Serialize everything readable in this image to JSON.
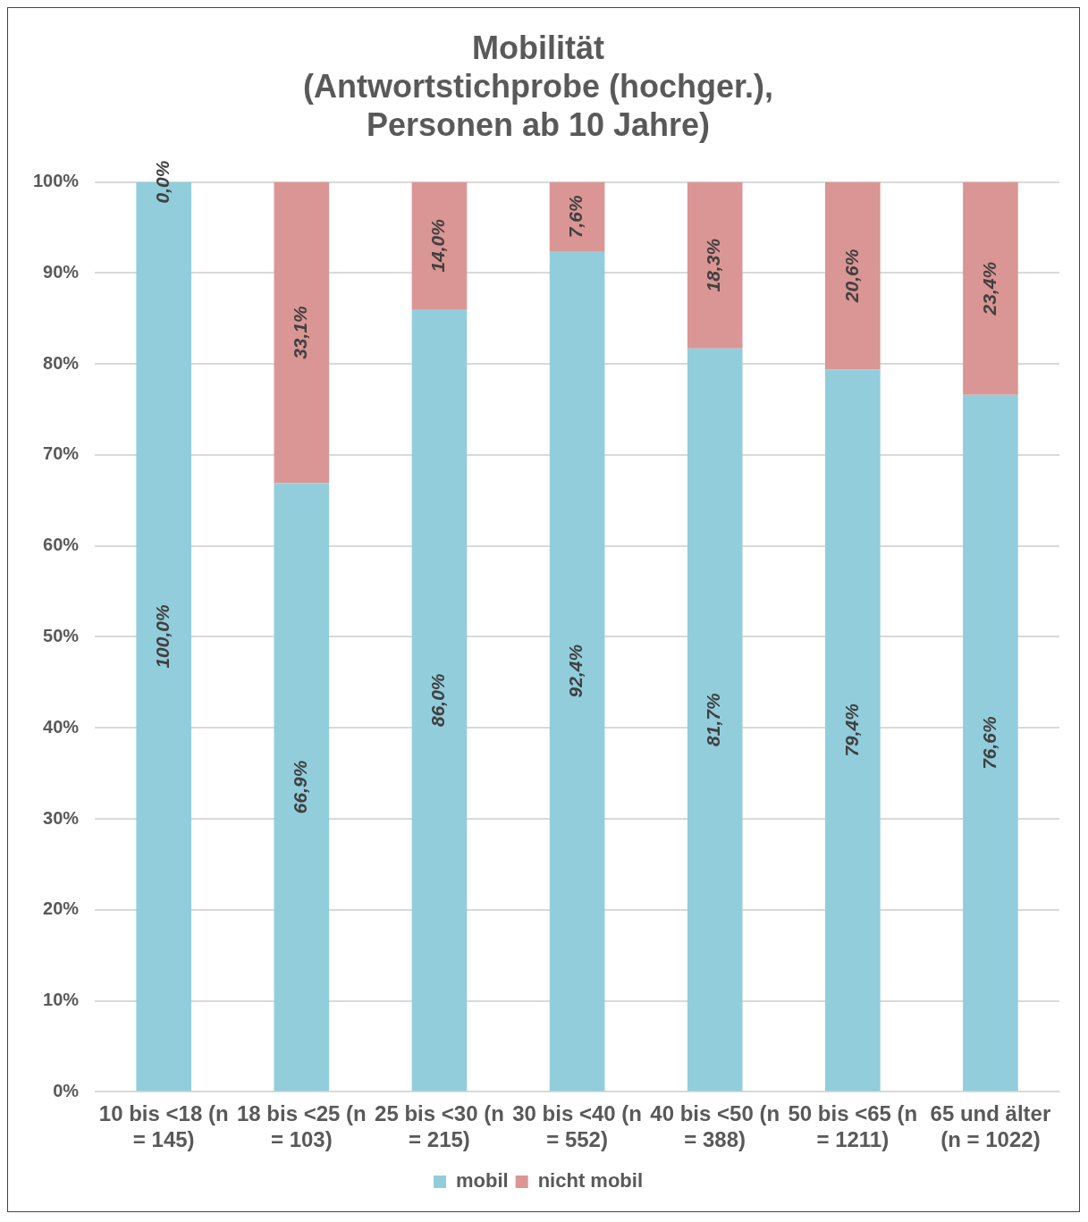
{
  "chart_data": {
    "type": "bar",
    "title": "Mobilität\n(Antwortstichprobe (hochger.),\nPersonen ab 10 Jahre)",
    "stacked": true,
    "categories": [
      "10 bis <18 (n = 145)",
      "18 bis <25 (n = 103)",
      "25 bis <30 (n = 215)",
      "30 bis <40 (n = 552)",
      "40 bis <50 (n = 388)",
      "50 bis <65 (n = 1211)",
      "65 und älter (n = 1022)"
    ],
    "series": [
      {
        "name": "mobil",
        "color": "#92cddc",
        "values": [
          100,
          66.9,
          86,
          92.4,
          81.7,
          79.4,
          76.6
        ],
        "value_labels": [
          "100,0%",
          "66,9%",
          "86,0%",
          "92,4%",
          "81,7%",
          "79,4%",
          "76,6%"
        ]
      },
      {
        "name": "nicht mobil",
        "color": "#da9694",
        "values": [
          0,
          33.1,
          14,
          7.6,
          18.3,
          20.6,
          23.4
        ],
        "value_labels": [
          "0,0%",
          "33,1%",
          "14,0%",
          "7,6%",
          "18,3%",
          "20,6%",
          "23,4%"
        ]
      }
    ],
    "ylim": [
      0,
      100
    ],
    "yticks": [
      {
        "value": 0,
        "label": "0%"
      },
      {
        "value": 10,
        "label": "10%"
      },
      {
        "value": 20,
        "label": "20%"
      },
      {
        "value": 30,
        "label": "30%"
      },
      {
        "value": 40,
        "label": "40%"
      },
      {
        "value": 50,
        "label": "50%"
      },
      {
        "value": 60,
        "label": "60%"
      },
      {
        "value": 70,
        "label": "70%"
      },
      {
        "value": 80,
        "label": "80%"
      },
      {
        "value": 90,
        "label": "90%"
      },
      {
        "value": 100,
        "label": "100%"
      }
    ],
    "grid": "y",
    "legend": "bottom"
  }
}
